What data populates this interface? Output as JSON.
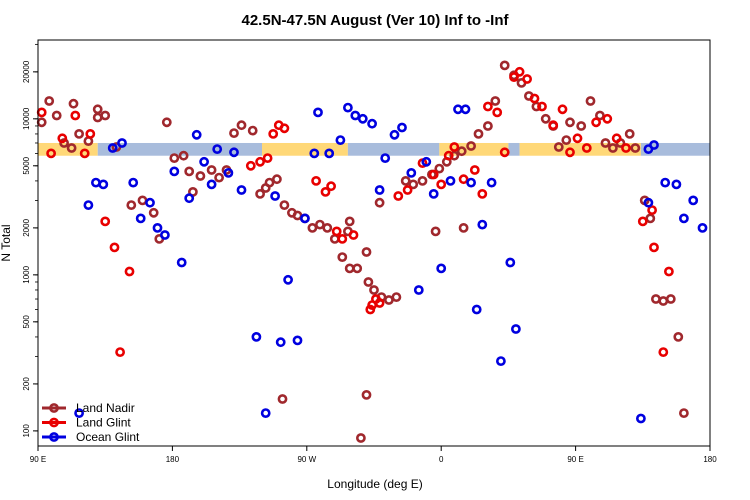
{
  "chart_data": {
    "type": "scatter",
    "title": "42.5N-47.5N August (Ver 10)   Inf to -Inf",
    "xlabel": "Longitude (deg E)",
    "ylabel": "N Total",
    "xlim": [
      90,
      450
    ],
    "ylim": [
      80,
      32000
    ],
    "y_scale": "log",
    "x_ticks": [
      {
        "value": 90,
        "label": "90 E"
      },
      {
        "value": 162,
        "label": "180"
      },
      {
        "value": 234,
        "label": "90 W"
      },
      {
        "value": 306,
        "label": "0"
      },
      {
        "value": 378,
        "label": "90 E"
      },
      {
        "value": 450,
        "label": "180"
      }
    ],
    "y_ticks": [
      {
        "value": 100,
        "label": "100"
      },
      {
        "value": 200,
        "label": "200"
      },
      {
        "value": 500,
        "label": "500"
      },
      {
        "value": 1000,
        "label": "1000"
      },
      {
        "value": 2000,
        "label": "2000"
      },
      {
        "value": 5000,
        "label": "5000"
      },
      {
        "value": 10000,
        "label": "10000"
      },
      {
        "value": 20000,
        "label": "20000"
      }
    ],
    "band": {
      "y_low": 5800,
      "y_high": 7000,
      "segments": [
        {
          "x0": 90,
          "x1": 122,
          "color": "#ffd878"
        },
        {
          "x0": 122,
          "x1": 210,
          "color": "#a8bcdc"
        },
        {
          "x0": 210,
          "x1": 256,
          "color": "#ffd878"
        },
        {
          "x0": 256,
          "x1": 305,
          "color": "#a8bcdc"
        },
        {
          "x0": 305,
          "x1": 342,
          "color": "#ffd878"
        },
        {
          "x0": 342,
          "x1": 348,
          "color": "#a8bcdc"
        },
        {
          "x0": 348,
          "x1": 413,
          "color": "#ffd878"
        },
        {
          "x0": 413,
          "x1": 450,
          "color": "#a8bcdc"
        }
      ]
    },
    "series": [
      {
        "name": "Land Nadir",
        "color": "#a0282d",
        "points": [
          [
            92,
            9500
          ],
          [
            96,
            13000
          ],
          [
            100,
            10500
          ],
          [
            104,
            7000
          ],
          [
            108,
            6500
          ],
          [
            112,
            8000
          ],
          [
            117,
            7200
          ],
          [
            132,
            6600
          ],
          [
            159,
            9500
          ],
          [
            163,
            5600
          ],
          [
            168,
            5800
          ],
          [
            171,
            4600
          ],
          [
            173,
            3400
          ],
          [
            177,
            4300
          ],
          [
            183,
            4700
          ],
          [
            187,
            4200
          ],
          [
            191,
            4700
          ],
          [
            195,
            8100
          ],
          [
            199,
            9100
          ],
          [
            205,
            8400
          ],
          [
            209,
            3300
          ],
          [
            212,
            3600
          ],
          [
            214,
            3900
          ],
          [
            218,
            4100
          ],
          [
            222,
            2800
          ],
          [
            226,
            2500
          ],
          [
            229,
            2400
          ],
          [
            233,
            2300
          ],
          [
            237,
            2000
          ],
          [
            241,
            2100
          ],
          [
            245,
            2000
          ],
          [
            249,
            1700
          ],
          [
            253,
            1300
          ],
          [
            257,
            1100
          ],
          [
            261,
            1100
          ],
          [
            267,
            900
          ],
          [
            270,
            800
          ],
          [
            274,
            720
          ],
          [
            278,
            690
          ],
          [
            282,
            720
          ],
          [
            256,
            1900
          ],
          [
            257,
            2200
          ],
          [
            266,
            1400
          ],
          [
            287,
            4000
          ],
          [
            291,
            3800
          ],
          [
            296,
            4000
          ],
          [
            301,
            4400
          ],
          [
            305,
            4800
          ],
          [
            309,
            5300
          ],
          [
            313,
            5800
          ],
          [
            317,
            6200
          ],
          [
            322,
            6700
          ],
          [
            326,
            8000
          ],
          [
            331,
            9000
          ],
          [
            335,
            13000
          ],
          [
            340,
            22000
          ],
          [
            345,
            19000
          ],
          [
            349,
            17000
          ],
          [
            353,
            14000
          ],
          [
            357,
            12000
          ],
          [
            362,
            10000
          ],
          [
            366,
            9000
          ],
          [
            369,
            6600
          ],
          [
            373,
            7300
          ],
          [
            375,
            9500
          ],
          [
            381,
            9000
          ],
          [
            386,
            13000
          ],
          [
            391,
            10500
          ],
          [
            394,
            7000
          ],
          [
            398,
            6500
          ],
          [
            402,
            7000
          ],
          [
            407,
            8000
          ],
          [
            410,
            6500
          ],
          [
            415,
            3000
          ],
          [
            418,
            2300
          ],
          [
            421,
            700
          ],
          [
            425,
            680
          ],
          [
            429,
            700
          ],
          [
            433,
            400
          ],
          [
            436,
            130
          ],
          [
            273,
            2900
          ],
          [
            318,
            2000
          ],
          [
            303,
            1900
          ],
          [
            263,
            90
          ],
          [
            266,
            170
          ],
          [
            221,
            160
          ],
          [
            122,
            10200
          ],
          [
            126,
            10500
          ],
          [
            122,
            11500
          ],
          [
            109,
            12500
          ],
          [
            146,
            3000
          ],
          [
            152,
            2500
          ],
          [
            155,
            1700
          ],
          [
            140,
            2800
          ]
        ]
      },
      {
        "name": "Land Glint",
        "color": "#e80000",
        "points": [
          [
            92,
            11000
          ],
          [
            97,
            6000
          ],
          [
            103,
            7500
          ],
          [
            110,
            10500
          ],
          [
            115,
            6000
          ],
          [
            118,
            8000
          ],
          [
            126,
            2200
          ],
          [
            131,
            1500
          ],
          [
            139,
            1050
          ],
          [
            134,
            320
          ],
          [
            204,
            5000
          ],
          [
            209,
            5300
          ],
          [
            213,
            5600
          ],
          [
            216,
            8000
          ],
          [
            219,
            9100
          ],
          [
            222,
            8700
          ],
          [
            239,
            4000
          ],
          [
            244,
            3400
          ],
          [
            247,
            3700
          ],
          [
            250,
            1900
          ],
          [
            253,
            1700
          ],
          [
            259,
            1800
          ],
          [
            268,
            600
          ],
          [
            271,
            700
          ],
          [
            283,
            3200
          ],
          [
            288,
            3500
          ],
          [
            296,
            5200
          ],
          [
            302,
            4400
          ],
          [
            306,
            3800
          ],
          [
            310,
            5800
          ],
          [
            313,
            6600
          ],
          [
            318,
            4100
          ],
          [
            324,
            4700
          ],
          [
            328,
            3300
          ],
          [
            331,
            12000
          ],
          [
            336,
            11000
          ],
          [
            340,
            6100
          ],
          [
            345,
            18500
          ],
          [
            348,
            20000
          ],
          [
            352,
            18000
          ],
          [
            356,
            13500
          ],
          [
            360,
            12000
          ],
          [
            366,
            9100
          ],
          [
            371,
            11500
          ],
          [
            375,
            6100
          ],
          [
            379,
            7500
          ],
          [
            384,
            6500
          ],
          [
            389,
            9500
          ],
          [
            395,
            10000
          ],
          [
            400,
            7500
          ],
          [
            405,
            6500
          ],
          [
            414,
            2200
          ],
          [
            419,
            2600
          ],
          [
            420,
            1500
          ],
          [
            425,
            320
          ],
          [
            428,
            1050
          ],
          [
            269,
            640
          ],
          [
            273,
            660
          ]
        ]
      },
      {
        "name": "Ocean Glint",
        "color": "#0000e0",
        "points": [
          [
            112,
            130
          ],
          [
            117,
            2800
          ],
          [
            121,
            3900
          ],
          [
            125,
            3800
          ],
          [
            130,
            6500
          ],
          [
            135,
            7000
          ],
          [
            141,
            3900
          ],
          [
            145,
            2300
          ],
          [
            150,
            2900
          ],
          [
            154,
            2000
          ],
          [
            158,
            1800
          ],
          [
            163,
            4600
          ],
          [
            167,
            1200
          ],
          [
            171,
            3100
          ],
          [
            175,
            7900
          ],
          [
            179,
            5300
          ],
          [
            183,
            3800
          ],
          [
            186,
            6400
          ],
          [
            192,
            4500
          ],
          [
            195,
            6100
          ],
          [
            199,
            3500
          ],
          [
            207,
            400
          ],
          [
            212,
            130
          ],
          [
            217,
            3200
          ],
          [
            220,
            370
          ],
          [
            224,
            930
          ],
          [
            229,
            380
          ],
          [
            233,
            2300
          ],
          [
            238,
            6000
          ],
          [
            240,
            11000
          ],
          [
            246,
            6000
          ],
          [
            252,
            7300
          ],
          [
            256,
            11800
          ],
          [
            260,
            10500
          ],
          [
            264,
            10000
          ],
          [
            269,
            9300
          ],
          [
            273,
            3500
          ],
          [
            276,
            5600
          ],
          [
            281,
            7900
          ],
          [
            285,
            8800
          ],
          [
            290,
            4500
          ],
          [
            294,
            800
          ],
          [
            298,
            5300
          ],
          [
            302,
            3300
          ],
          [
            306,
            1100
          ],
          [
            311,
            4000
          ],
          [
            315,
            11500
          ],
          [
            319,
            11500
          ],
          [
            322,
            3900
          ],
          [
            325,
            600
          ],
          [
            328,
            2100
          ],
          [
            333,
            3900
          ],
          [
            338,
            280
          ],
          [
            343,
            1200
          ],
          [
            346,
            450
          ],
          [
            417,
            6400
          ],
          [
            420,
            6800
          ],
          [
            426,
            3900
          ],
          [
            432,
            3800
          ],
          [
            436,
            2300
          ],
          [
            441,
            3000
          ],
          [
            446,
            2000
          ],
          [
            413,
            120
          ],
          [
            417,
            2900
          ]
        ]
      }
    ],
    "legend": {
      "position": "bottom-left",
      "entries": [
        {
          "label": "Land Nadir",
          "color": "#a0282d"
        },
        {
          "label": "Land Glint",
          "color": "#e80000"
        },
        {
          "label": "Ocean Glint",
          "color": "#0000e0"
        }
      ]
    }
  }
}
